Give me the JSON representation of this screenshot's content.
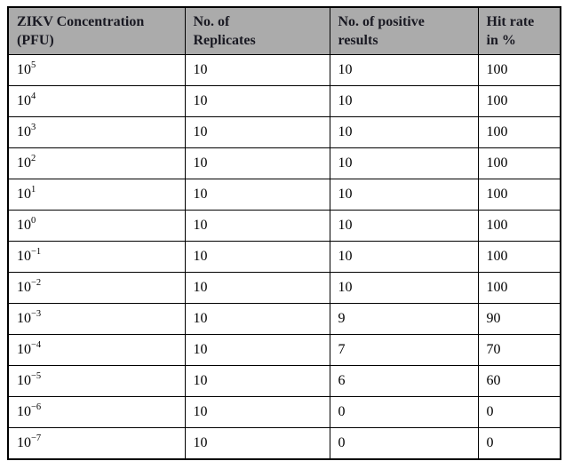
{
  "page": {
    "background": "#ffffff"
  },
  "table": {
    "title": "zikv-dilution-series-results",
    "header_bg": "#ababab",
    "border_color": "#000000",
    "header_text_color": "#191922",
    "body_text_color": "#000000",
    "columns": [
      {
        "id": "concentration",
        "line1": "ZIKV Concentration",
        "line2": "(PFU)"
      },
      {
        "id": "replicates",
        "line1": "No. of",
        "line2": "Replicates"
      },
      {
        "id": "positive",
        "line1": "No. of positive",
        "line2": "results"
      },
      {
        "id": "hit_rate",
        "line1": "Hit rate",
        "line2": "in %"
      }
    ],
    "rows": [
      {
        "concentration_base": "10",
        "concentration_exp": "5",
        "replicates": "10",
        "positive": "10",
        "hit_rate": "100"
      },
      {
        "concentration_base": "10",
        "concentration_exp": "4",
        "replicates": "10",
        "positive": "10",
        "hit_rate": "100"
      },
      {
        "concentration_base": "10",
        "concentration_exp": "3",
        "replicates": "10",
        "positive": "10",
        "hit_rate": "100"
      },
      {
        "concentration_base": "10",
        "concentration_exp": "2",
        "replicates": "10",
        "positive": "10",
        "hit_rate": "100"
      },
      {
        "concentration_base": "10",
        "concentration_exp": "1",
        "replicates": "10",
        "positive": "10",
        "hit_rate": "100"
      },
      {
        "concentration_base": "10",
        "concentration_exp": "0",
        "replicates": "10",
        "positive": "10",
        "hit_rate": "100"
      },
      {
        "concentration_base": "10",
        "concentration_exp": "−1",
        "replicates": "10",
        "positive": "10",
        "hit_rate": "100"
      },
      {
        "concentration_base": "10",
        "concentration_exp": "−2",
        "replicates": "10",
        "positive": "10",
        "hit_rate": "100"
      },
      {
        "concentration_base": "10",
        "concentration_exp": "−3",
        "replicates": "10",
        "positive": "9",
        "hit_rate": "90"
      },
      {
        "concentration_base": "10",
        "concentration_exp": "−4",
        "replicates": "10",
        "positive": "7",
        "hit_rate": "70"
      },
      {
        "concentration_base": "10",
        "concentration_exp": "−5",
        "replicates": "10",
        "positive": "6",
        "hit_rate": "60"
      },
      {
        "concentration_base": "10",
        "concentration_exp": "−6",
        "replicates": "10",
        "positive": "0",
        "hit_rate": "0"
      },
      {
        "concentration_base": "10",
        "concentration_exp": "−7",
        "replicates": "10",
        "positive": "0",
        "hit_rate": "0"
      }
    ]
  }
}
